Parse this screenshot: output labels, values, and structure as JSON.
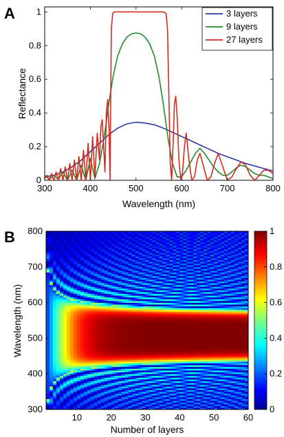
{
  "panels": {
    "a": "A",
    "b": "B"
  },
  "chart_data": [
    {
      "type": "line",
      "xlabel": "Wavelength (nm)",
      "ylabel": "Reflectance",
      "xlim": [
        300,
        800
      ],
      "ylim": [
        0,
        1.03
      ],
      "xticks": [
        300,
        400,
        500,
        600,
        700,
        800
      ],
      "yticks": [
        0,
        0.2,
        0.4,
        0.6,
        0.8,
        1
      ],
      "ytick_labels": [
        "0",
        "0.2",
        "0.4",
        "0.6",
        "0.8",
        "1"
      ],
      "grid": false,
      "legend_position": "top-right",
      "series": [
        {
          "name": "3 layers",
          "color": "#2b3aa8",
          "x": [
            300,
            320,
            340,
            360,
            380,
            400,
            420,
            440,
            460,
            480,
            500,
            520,
            540,
            560,
            580,
            600,
            620,
            640,
            660,
            680,
            700,
            720,
            740,
            760,
            780,
            800
          ],
          "y": [
            0.02,
            0.03,
            0.05,
            0.08,
            0.12,
            0.17,
            0.22,
            0.27,
            0.31,
            0.335,
            0.345,
            0.34,
            0.33,
            0.31,
            0.285,
            0.26,
            0.235,
            0.21,
            0.185,
            0.16,
            0.14,
            0.12,
            0.1,
            0.085,
            0.07,
            0.055
          ]
        },
        {
          "name": "9 layers",
          "color": "#208a2c",
          "x": [
            300,
            310,
            320,
            330,
            340,
            350,
            360,
            370,
            380,
            390,
            400,
            410,
            420,
            430,
            440,
            450,
            460,
            470,
            480,
            490,
            500,
            510,
            520,
            530,
            540,
            550,
            560,
            570,
            580,
            590,
            600,
            610,
            620,
            630,
            640,
            650,
            660,
            670,
            680,
            690,
            700,
            710,
            720,
            730,
            740,
            750,
            760,
            770,
            780,
            790,
            800
          ],
          "y": [
            0.03,
            0.005,
            0.03,
            0.005,
            0.05,
            0.0,
            0.06,
            0.0,
            0.09,
            0.0,
            0.13,
            0.01,
            0.1,
            0.25,
            0.45,
            0.62,
            0.74,
            0.81,
            0.85,
            0.87,
            0.875,
            0.87,
            0.85,
            0.81,
            0.74,
            0.62,
            0.45,
            0.25,
            0.1,
            0.02,
            0.02,
            0.06,
            0.11,
            0.16,
            0.19,
            0.16,
            0.12,
            0.08,
            0.05,
            0.03,
            0.03,
            0.05,
            0.075,
            0.09,
            0.08,
            0.06,
            0.04,
            0.03,
            0.03,
            0.02,
            0.01
          ]
        },
        {
          "name": "27 layers",
          "color": "#d42a1e",
          "x": [
            300,
            305,
            310,
            315,
            320,
            325,
            330,
            335,
            340,
            345,
            350,
            355,
            360,
            365,
            370,
            375,
            380,
            385,
            390,
            395,
            400,
            405,
            410,
            415,
            420,
            423,
            426,
            429,
            432,
            435,
            438,
            441,
            443,
            446,
            449,
            452,
            460,
            480,
            500,
            520,
            540,
            560,
            566,
            569,
            572,
            575,
            578,
            581,
            584,
            587,
            590,
            594,
            598,
            602,
            606,
            610,
            616,
            622,
            628,
            634,
            640,
            648,
            656,
            664,
            672,
            680,
            690,
            700,
            710,
            720,
            730,
            740,
            750,
            760,
            770,
            780,
            790,
            800
          ],
          "y": [
            0.01,
            0.03,
            0.0,
            0.04,
            0.0,
            0.05,
            0.0,
            0.07,
            0.0,
            0.08,
            0.0,
            0.1,
            0.0,
            0.12,
            0.0,
            0.14,
            0.0,
            0.18,
            0.0,
            0.22,
            0.0,
            0.26,
            0.02,
            0.28,
            0.12,
            0.32,
            0.36,
            0.2,
            0.05,
            0.4,
            0.48,
            0.3,
            0.0,
            0.9,
            0.99,
            1.0,
            1.0,
            1.0,
            1.0,
            1.0,
            1.0,
            1.0,
            0.99,
            0.9,
            0.5,
            0.1,
            0.0,
            0.2,
            0.45,
            0.5,
            0.38,
            0.12,
            0.0,
            0.05,
            0.2,
            0.28,
            0.12,
            0.0,
            0.02,
            0.12,
            0.16,
            0.08,
            0.0,
            0.02,
            0.1,
            0.16,
            0.08,
            0.0,
            0.02,
            0.07,
            0.11,
            0.09,
            0.03,
            0.0,
            0.03,
            0.06,
            0.06,
            0.04
          ]
        }
      ]
    },
    {
      "type": "heatmap",
      "xlabel": "Number of layers",
      "ylabel": "Wavelength (nm)",
      "xlim": [
        1,
        60
      ],
      "ylim": [
        300,
        800
      ],
      "xticks": [
        10,
        20,
        30,
        40,
        50,
        60
      ],
      "yticks": [
        300,
        400,
        500,
        600,
        700,
        800
      ],
      "colorbar": {
        "range": [
          0,
          1
        ],
        "ticks": [
          0,
          0.2,
          0.4,
          0.6,
          0.8,
          1
        ],
        "tick_labels": [
          "0",
          "0.2",
          "0.4",
          "0.6",
          "0.8",
          "1"
        ],
        "colormap": "jet"
      },
      "stopband_nm": [
        450,
        565
      ],
      "description_values": {
        "max_reflectance": 1,
        "min_reflectance": 0
      }
    }
  ]
}
